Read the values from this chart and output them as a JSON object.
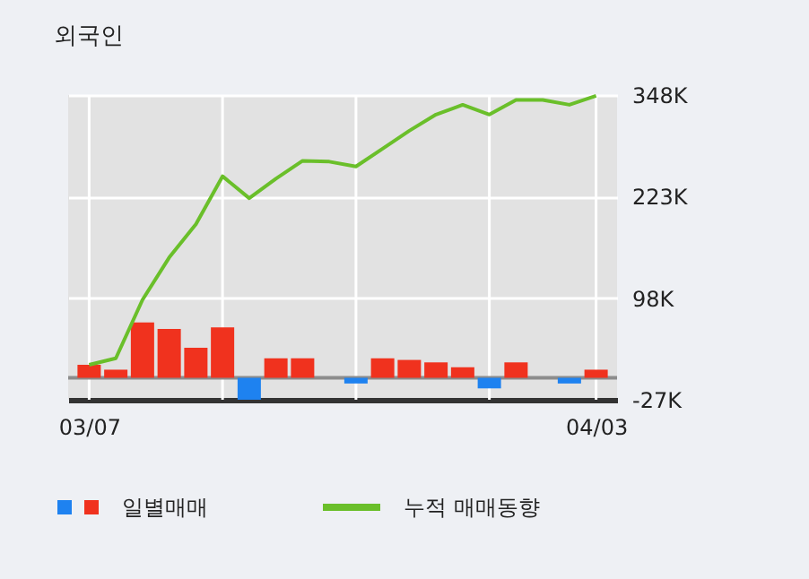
{
  "chart_data": {
    "type": "bar",
    "title": "외국인",
    "categories": [
      "03/07",
      null,
      null,
      null,
      null,
      null,
      null,
      null,
      null,
      null,
      null,
      null,
      null,
      null,
      null,
      null,
      null,
      null,
      null,
      "04/03"
    ],
    "series": [
      {
        "name": "일별매매",
        "color": "#f0321e",
        "colors": [
          "#f0321e",
          "#f0321e",
          "#f0321e",
          "#f0321e",
          "#f0321e",
          "#f0321e",
          "#1e82f0",
          "#f0321e",
          "#f0321e",
          "#f0321e",
          "#1e82f0",
          "#f0321e",
          "#f0321e",
          "#f0321e",
          "#f0321e",
          "#1e82f0",
          "#f0321e",
          "#f0321e",
          "#1e82f0",
          "#f0321e"
        ],
        "values": [
          16000,
          10000,
          68000,
          60000,
          37000,
          62000,
          -27000,
          24000,
          24000,
          0,
          -7000,
          24000,
          22000,
          19000,
          13000,
          -13000,
          19000,
          0,
          -7000,
          10000
        ]
      },
      {
        "name": "누적 매매동향",
        "type": "line",
        "color": "#6abf2a",
        "values": [
          16000,
          24000,
          96000,
          148000,
          189000,
          248000,
          221000,
          245000,
          267000,
          266000,
          260000,
          282000,
          304000,
          324000,
          336000,
          324000,
          342000,
          342000,
          336000,
          347000
        ]
      }
    ],
    "ylim": [
      -27000,
      348000
    ],
    "yticks": [
      {
        "value": -27000,
        "label": "-27K"
      },
      {
        "value": 98000,
        "label": "98K"
      },
      {
        "value": 223000,
        "label": "223K"
      },
      {
        "value": 348000,
        "label": "348K"
      }
    ],
    "ref_lines": [
      {
        "axis": "y",
        "value": 0,
        "color": "#8c8c8c"
      }
    ],
    "grid": true,
    "legend": "bottom",
    "marker": "none",
    "line_style": "solid"
  }
}
